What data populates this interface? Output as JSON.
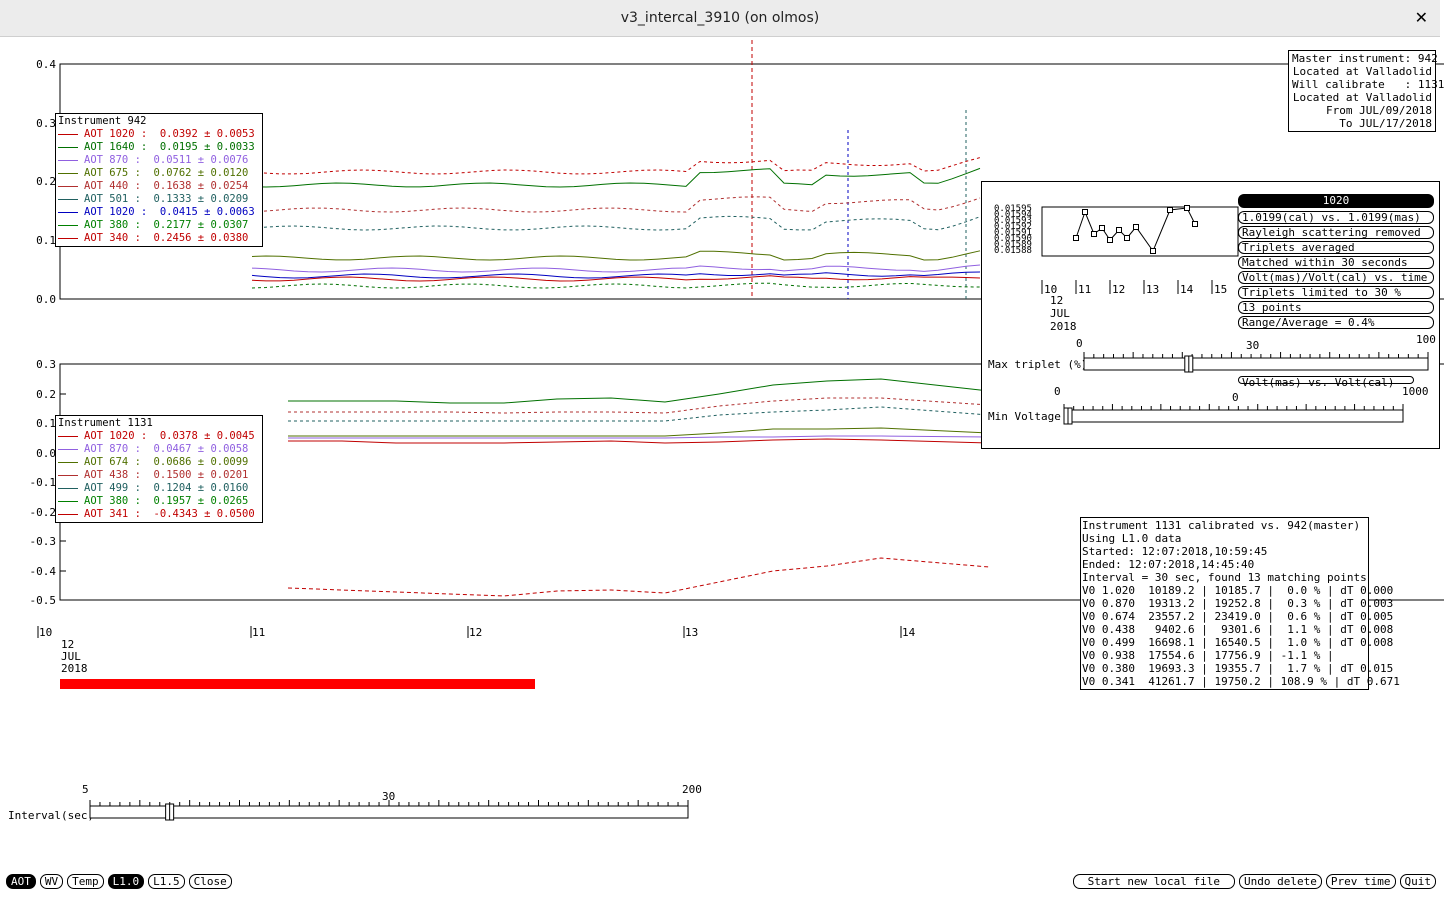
{
  "window": {
    "title": "v3_intercal_3910 (on olmos)"
  },
  "top_plot": {
    "y_ticks": [
      "0.4",
      "0.3",
      "0.2",
      "0.1",
      "0.0"
    ],
    "legend_title": "Instrument 942",
    "legend": [
      {
        "label": "AOT 1020 :",
        "value": "0.0392 ± 0.0053",
        "color": "#c00000"
      },
      {
        "label": "AOT 1640 :",
        "value": "0.0195 ± 0.0033",
        "color": "#007000"
      },
      {
        "label": "AOT 870 :",
        "value": "0.0511 ± 0.0076",
        "color": "#9060e0"
      },
      {
        "label": "AOT 675 :",
        "value": "0.0762 ± 0.0120",
        "color": "#507000"
      },
      {
        "label": "AOT 440 :",
        "value": "0.1638 ± 0.0254",
        "color": "#b03030"
      },
      {
        "label": "AOT 501 :",
        "value": "0.1333 ± 0.0209",
        "color": "#206060"
      },
      {
        "label": "AOT 1020 :",
        "value": "0.0415 ± 0.0063",
        "color": "#0000c0"
      },
      {
        "label": "AOT 380 :",
        "value": "0.2177 ± 0.0307",
        "color": "#008000"
      },
      {
        "label": "AOT 340 :",
        "value": "0.2456 ± 0.0380",
        "color": "#c00000"
      }
    ]
  },
  "bottom_plot": {
    "y_ticks": [
      "0.3",
      "0.2",
      "0.1",
      "0.0",
      "-0.1",
      "-0.2",
      "-0.3",
      "-0.4",
      "-0.5"
    ],
    "legend_title": "Instrument 1131",
    "legend": [
      {
        "label": "AOT 1020 :",
        "value": "0.0378 ± 0.0045",
        "color": "#c00000"
      },
      {
        "label": "AOT 870 :",
        "value": "0.0467 ± 0.0058",
        "color": "#9060e0"
      },
      {
        "label": "AOT 674 :",
        "value": "0.0686 ± 0.0099",
        "color": "#507000"
      },
      {
        "label": "AOT 438 :",
        "value": "0.1500 ± 0.0201",
        "color": "#b03030"
      },
      {
        "label": "AOT 499 :",
        "value": "0.1204 ± 0.0160",
        "color": "#206060"
      },
      {
        "label": "AOT 380 :",
        "value": "0.1957 ± 0.0265",
        "color": "#008000"
      },
      {
        "label": "AOT 341 :",
        "value": "-0.4343 ± 0.0500",
        "color": "#c00000"
      }
    ]
  },
  "time_axis": {
    "ticks": [
      "10",
      "11",
      "12",
      "13",
      "14"
    ],
    "day": "12",
    "month": "JUL",
    "year": "2018"
  },
  "master_box": [
    "Master instrument: 942",
    "Located at Valladolid",
    "Will calibrate   : 1131",
    "Located at Valladolid",
    "From JUL/09/2018",
    "To JUL/17/2018"
  ],
  "popup": {
    "mini_y_ticks": [
      "0.01595",
      "0.01594",
      "0.01593",
      "0.01592",
      "0.01591",
      "0.01590",
      "0.01589",
      "0.01588"
    ],
    "mini_x_ticks": [
      "10",
      "11",
      "12",
      "13",
      "14",
      "15"
    ],
    "mini_day": "12",
    "mini_month": "JUL",
    "mini_year": "2018",
    "wavelength": "1020",
    "options": [
      "1.0199(cal) vs. 1.0199(mas)",
      "Rayleigh scattering removed",
      "Triplets averaged",
      "Matched within 30 seconds",
      "Volt(mas)/Volt(cal) vs. time",
      "Triplets limited to 30 %",
      "13 points",
      "Range/Average = 0.4%"
    ],
    "option_cut": "Volt(mas) vs. Volt(cal)",
    "triplet_slider": {
      "label": "Max triplet (%)",
      "min": "0",
      "mid": "30",
      "max": "100",
      "value_pct": 30
    },
    "voltage_slider": {
      "label": "Min Voltage",
      "min": "0",
      "mid": "0",
      "max": "1000",
      "value_pct": 0
    }
  },
  "calib_box": [
    "Instrument 1131 calibrated vs. 942(master)",
    "Using L1.0 data",
    "Started: 12:07:2018,10:59:45",
    "Ended: 12:07:2018,14:45:40",
    "Interval = 30 sec, found 13 matching points",
    "V0 1.020  10189.2 | 10185.7 |  0.0 % | dT 0.000",
    "V0 0.870  19313.2 | 19252.8 |  0.3 % | dT 0.003",
    "V0 0.674  23557.2 | 23419.0 |  0.6 % | dT 0.005",
    "V0 0.438   9402.6 |  9301.6 |  1.1 % | dT 0.008",
    "V0 0.499  16698.1 | 16540.5 |  1.0 % | dT 0.008",
    "V0 0.938  17554.6 | 17756.9 | -1.1 % |",
    "V0 0.380  19693.3 | 19355.7 |  1.7 % | dT 0.015",
    "V0 0.341  41261.7 | 19750.2 | 108.9 % | dT 0.671"
  ],
  "interval_slider": {
    "label": "Interval(sec)",
    "min": "5",
    "mid": "30",
    "max": "200",
    "value": 30
  },
  "buttons_left": [
    {
      "label": "AOT",
      "selected": true
    },
    {
      "label": "WV",
      "selected": false
    },
    {
      "label": "Temp",
      "selected": false
    },
    {
      "label": "L1.0",
      "selected": true
    },
    {
      "label": "L1.5",
      "selected": false
    },
    {
      "label": "Close",
      "selected": false
    }
  ],
  "buttons_right": [
    "Start new local file",
    "Undo delete",
    "Prev time",
    "Quit"
  ],
  "progress": {
    "fraction": 0.4
  }
}
